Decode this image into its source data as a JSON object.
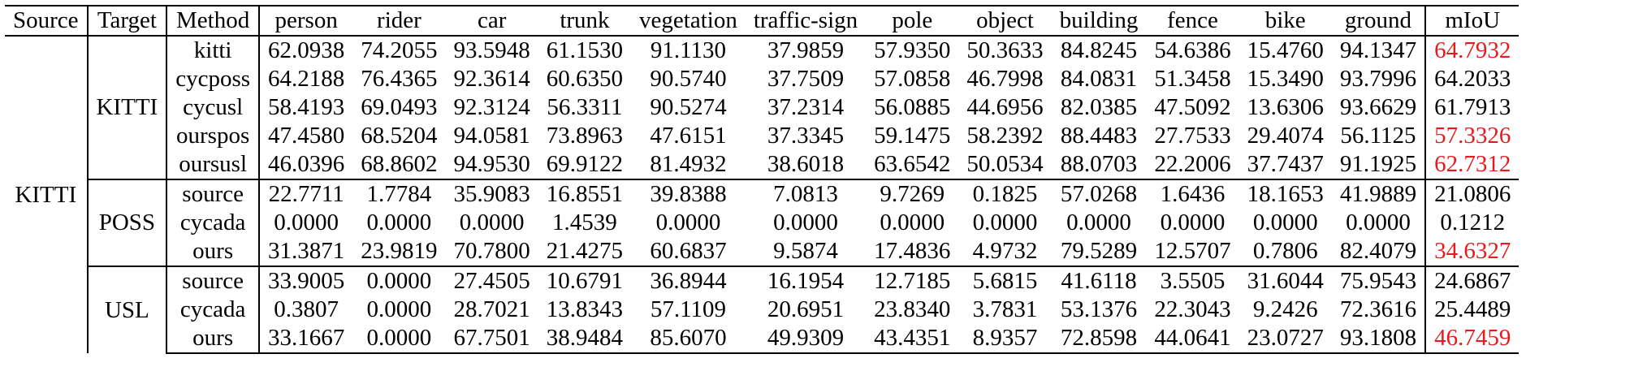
{
  "table": {
    "headers": [
      "Source",
      "Target",
      "Method",
      "person",
      "rider",
      "car",
      "trunk",
      "vegetation",
      "traffic-sign",
      "pole",
      "object",
      "building",
      "fence",
      "bike",
      "ground",
      "mIoU"
    ],
    "source_label": "KITTI",
    "groups": [
      {
        "target": "KITTI",
        "rows": [
          {
            "method": "kitti",
            "values": [
              "62.0938",
              "74.2055",
              "93.5948",
              "61.1530",
              "91.1130",
              "37.9859",
              "57.9350",
              "50.3633",
              "84.8245",
              "54.6386",
              "15.4760",
              "94.1347"
            ],
            "miou": "64.7932",
            "highlight": true
          },
          {
            "method": "cycposs",
            "values": [
              "64.2188",
              "76.4365",
              "92.3614",
              "60.6350",
              "90.5740",
              "37.7509",
              "57.0858",
              "46.7998",
              "84.0831",
              "51.3458",
              "15.3490",
              "93.7996"
            ],
            "miou": "64.2033",
            "highlight": false
          },
          {
            "method": "cycusl",
            "values": [
              "58.4193",
              "69.0493",
              "92.3124",
              "56.3311",
              "90.5274",
              "37.2314",
              "56.0885",
              "44.6956",
              "82.0385",
              "47.5092",
              "13.6306",
              "93.6629"
            ],
            "miou": "61.7913",
            "highlight": false
          },
          {
            "method": "ourspos",
            "values": [
              "47.4580",
              "68.5204",
              "94.0581",
              "73.8963",
              "47.6151",
              "37.3345",
              "59.1475",
              "58.2392",
              "88.4483",
              "27.7533",
              "29.4074",
              "56.1125"
            ],
            "miou": "57.3326",
            "highlight": true
          },
          {
            "method": "oursusl",
            "values": [
              "46.0396",
              "68.8602",
              "94.9530",
              "69.9122",
              "81.4932",
              "38.6018",
              "63.6542",
              "50.0534",
              "88.0703",
              "22.2006",
              "37.7437",
              "91.1925"
            ],
            "miou": "62.7312",
            "highlight": true
          }
        ]
      },
      {
        "target": "POSS",
        "rows": [
          {
            "method": "source",
            "values": [
              "22.7711",
              "1.7784",
              "35.9083",
              "16.8551",
              "39.8388",
              "7.0813",
              "9.7269",
              "0.1825",
              "57.0268",
              "1.6436",
              "18.1653",
              "41.9889"
            ],
            "miou": "21.0806",
            "highlight": false
          },
          {
            "method": "cycada",
            "values": [
              "0.0000",
              "0.0000",
              "0.0000",
              "1.4539",
              "0.0000",
              "0.0000",
              "0.0000",
              "0.0000",
              "0.0000",
              "0.0000",
              "0.0000",
              "0.0000"
            ],
            "miou": "0.1212",
            "highlight": false
          },
          {
            "method": "ours",
            "values": [
              "31.3871",
              "23.9819",
              "70.7800",
              "21.4275",
              "60.6837",
              "9.5874",
              "17.4836",
              "4.9732",
              "79.5289",
              "12.5707",
              "0.7806",
              "82.4079"
            ],
            "miou": "34.6327",
            "highlight": true
          }
        ]
      },
      {
        "target": "USL",
        "rows": [
          {
            "method": "source",
            "values": [
              "33.9005",
              "0.0000",
              "27.4505",
              "10.6791",
              "36.8944",
              "16.1954",
              "12.7185",
              "5.6815",
              "41.6118",
              "3.5505",
              "31.6044",
              "75.9543"
            ],
            "miou": "24.6867",
            "highlight": false
          },
          {
            "method": "cycada",
            "values": [
              "0.3807",
              "0.0000",
              "28.7021",
              "13.8343",
              "57.1109",
              "20.6951",
              "23.8340",
              "3.7831",
              "53.1376",
              "22.3043",
              "9.2426",
              "72.3616"
            ],
            "miou": "25.4489",
            "highlight": false
          },
          {
            "method": "ours",
            "values": [
              "33.1667",
              "0.0000",
              "67.7501",
              "38.9484",
              "85.6070",
              "49.9309",
              "43.4351",
              "8.9357",
              "72.8598",
              "44.0641",
              "23.0727",
              "93.1808"
            ],
            "miou": "46.7459",
            "highlight": true
          }
        ]
      }
    ]
  },
  "colors": {
    "highlight": "#e8191c",
    "text": "#000000"
  }
}
